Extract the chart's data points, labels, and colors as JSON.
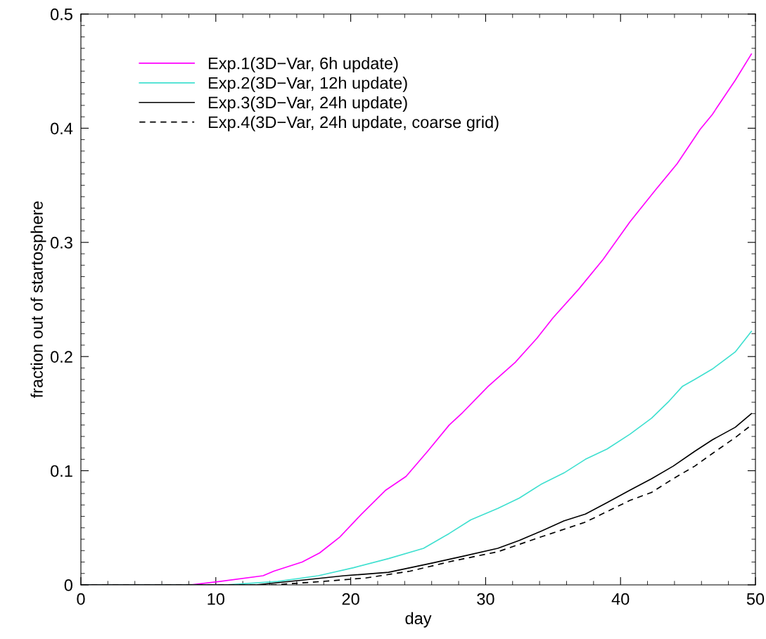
{
  "chart_data": {
    "type": "line",
    "xlabel": "day",
    "ylabel": "fraction out of startosphere",
    "xlim": [
      0,
      50
    ],
    "ylim": [
      0,
      0.5
    ],
    "xticks": [
      0,
      10,
      20,
      30,
      40,
      50
    ],
    "yticks": [
      0,
      0.1,
      0.2,
      0.3,
      0.4,
      0.5
    ],
    "grid": false,
    "legend": "top left",
    "marker": "none",
    "series": [
      {
        "name": "Exp.1(3D−Var, 6h update)",
        "color": "#ff00ff",
        "line_style": "solid",
        "x": [
          0,
          8.1,
          10.3,
          13.5,
          14.3,
          16.4,
          17.7,
          19.2,
          20.8,
          22.6,
          24.1,
          25.7,
          27.3,
          28.3,
          30.2,
          32.2,
          33.8,
          35.0,
          36.9,
          38.7,
          40.7,
          42.6,
          44.2,
          45.9,
          46.8,
          48.5,
          49.7
        ],
        "values": [
          0,
          0,
          0.003,
          0.008,
          0.012,
          0.02,
          0.028,
          0.042,
          0.062,
          0.083,
          0.095,
          0.117,
          0.14,
          0.151,
          0.174,
          0.195,
          0.216,
          0.234,
          0.259,
          0.285,
          0.318,
          0.346,
          0.369,
          0.399,
          0.412,
          0.442,
          0.465
        ]
      },
      {
        "name": "Exp.2(3D−Var, 12h update)",
        "color": "#40e0d0",
        "line_style": "solid",
        "x": [
          0,
          10.7,
          14.6,
          17.6,
          20.2,
          22.8,
          25.4,
          27.3,
          28.9,
          30.9,
          32.5,
          34.1,
          35.8,
          37.4,
          39.0,
          40.7,
          42.3,
          43.6,
          44.6,
          45.5,
          46.8,
          48.5,
          49.7
        ],
        "values": [
          0,
          0,
          0.003,
          0.008,
          0.015,
          0.023,
          0.032,
          0.045,
          0.057,
          0.067,
          0.076,
          0.088,
          0.098,
          0.11,
          0.119,
          0.132,
          0.146,
          0.161,
          0.174,
          0.18,
          0.189,
          0.204,
          0.222
        ]
      },
      {
        "name": "Exp.3(3D−Var, 24h update)",
        "color": "#000000",
        "line_style": "solid",
        "x": [
          0,
          13.0,
          16.3,
          19.5,
          22.8,
          26.0,
          28.3,
          30.9,
          32.5,
          34.1,
          35.8,
          37.4,
          39.0,
          40.7,
          42.3,
          43.9,
          45.5,
          46.8,
          48.5,
          49.7
        ],
        "values": [
          0,
          0,
          0.004,
          0.008,
          0.011,
          0.019,
          0.025,
          0.032,
          0.039,
          0.047,
          0.056,
          0.062,
          0.072,
          0.083,
          0.093,
          0.104,
          0.117,
          0.127,
          0.138,
          0.15
        ]
      },
      {
        "name": "Exp.4(3D−Var, 24h update, coarse grid)",
        "color": "#000000",
        "line_style": "dashed",
        "x": [
          0,
          14.3,
          17.9,
          21.1,
          24.4,
          27.6,
          30.9,
          34.1,
          37.4,
          40.7,
          42.3,
          43.9,
          45.5,
          46.8,
          48.5,
          49.7
        ],
        "values": [
          0,
          0,
          0.003,
          0.006,
          0.012,
          0.021,
          0.029,
          0.042,
          0.055,
          0.074,
          0.081,
          0.093,
          0.104,
          0.115,
          0.129,
          0.14
        ]
      }
    ]
  }
}
